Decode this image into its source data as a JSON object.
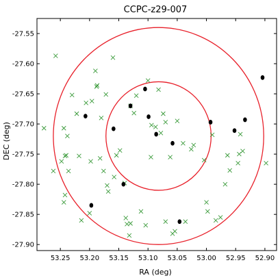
{
  "chart_data": {
    "type": "scatter",
    "title": "CCPC-z29-007",
    "xlabel": "RA (deg)",
    "ylabel": "DEC (deg)",
    "xlim": [
      53.29,
      52.88
    ],
    "ylim": [
      -27.91,
      -27.525
    ],
    "x_ticks": [
      53.25,
      53.2,
      53.15,
      53.1,
      53.05,
      53.0,
      52.95,
      52.9
    ],
    "x_tick_labels": [
      "53.25",
      "53.20",
      "53.15",
      "53.10",
      "53.05",
      "53.00",
      "52.95",
      "52.90"
    ],
    "y_ticks": [
      -27.55,
      -27.6,
      -27.65,
      -27.7,
      -27.75,
      -27.8,
      -27.85,
      -27.9
    ],
    "y_tick_labels": [
      "-27.55",
      "-27.60",
      "-27.65",
      "-27.70",
      "-27.75",
      "-27.80",
      "-27.85",
      "-27.90"
    ],
    "grid": false,
    "colors": {
      "circle": "#e8202a",
      "cross": "#3a9a3a",
      "dot": "#000000"
    },
    "circles": [
      {
        "center": [
          53.082,
          -27.72
        ],
        "radius_deg": 0.09
      },
      {
        "center": [
          53.082,
          -27.72
        ],
        "radius_deg": 0.18
      }
    ],
    "series": [
      {
        "marker": "cross",
        "points": [
          [
            53.278,
            -27.707
          ],
          [
            53.262,
            -27.778
          ],
          [
            53.258,
            -27.587
          ],
          [
            53.248,
            -27.762
          ],
          [
            53.244,
            -27.707
          ],
          [
            53.242,
            -27.753
          ],
          [
            53.24,
            -27.752
          ],
          [
            53.238,
            -27.72
          ],
          [
            53.244,
            -27.83
          ],
          [
            53.242,
            -27.818
          ],
          [
            53.236,
            -27.778
          ],
          [
            53.23,
            -27.652
          ],
          [
            53.222,
            -27.683
          ],
          [
            53.218,
            -27.753
          ],
          [
            53.214,
            -27.86
          ],
          [
            53.206,
            -27.665
          ],
          [
            53.2,
            -27.848
          ],
          [
            53.198,
            -27.762
          ],
          [
            53.196,
            -27.662
          ],
          [
            53.19,
            -27.612
          ],
          [
            53.188,
            -27.638
          ],
          [
            53.187,
            -27.636
          ],
          [
            53.182,
            -27.757
          ],
          [
            53.18,
            -27.69
          ],
          [
            53.176,
            -27.778
          ],
          [
            53.172,
            -27.651
          ],
          [
            53.17,
            -27.802
          ],
          [
            53.168,
            -27.812
          ],
          [
            53.16,
            -27.59
          ],
          [
            53.158,
            -27.788
          ],
          [
            53.154,
            -27.752
          ],
          [
            53.148,
            -27.744
          ],
          [
            53.14,
            -27.798
          ],
          [
            53.138,
            -27.856
          ],
          [
            53.136,
            -27.866
          ],
          [
            53.132,
            -27.885
          ],
          [
            53.13,
            -27.865
          ],
          [
            53.13,
            -27.67
          ],
          [
            53.124,
            -27.682
          ],
          [
            53.12,
            -27.653
          ],
          [
            53.112,
            -27.845
          ],
          [
            53.104,
            -27.868
          ],
          [
            53.1,
            -27.628
          ],
          [
            53.095,
            -27.755
          ],
          [
            53.094,
            -27.702
          ],
          [
            53.087,
            -27.705
          ],
          [
            53.082,
            -27.643
          ],
          [
            53.078,
            -27.715
          ],
          [
            53.074,
            -27.683
          ],
          [
            53.07,
            -27.697
          ],
          [
            53.07,
            -27.862
          ],
          [
            53.062,
            -27.755
          ],
          [
            53.058,
            -27.882
          ],
          [
            53.054,
            -27.878
          ],
          [
            53.05,
            -27.695
          ],
          [
            53.04,
            -27.732
          ],
          [
            53.036,
            -27.862
          ],
          [
            53.026,
            -27.742
          ],
          [
            53.022,
            -27.735
          ],
          [
            53.004,
            -27.76
          ],
          [
            53.0,
            -27.83
          ],
          [
            52.998,
            -27.845
          ],
          [
            52.99,
            -27.718
          ],
          [
            52.984,
            -27.86
          ],
          [
            52.976,
            -27.855
          ],
          [
            52.968,
            -27.8
          ],
          [
            52.964,
            -27.752
          ],
          [
            52.96,
            -27.777
          ],
          [
            52.946,
            -27.765
          ],
          [
            52.944,
            -27.75
          ],
          [
            52.942,
            -27.717
          ],
          [
            52.938,
            -27.745
          ],
          [
            52.898,
            -27.765
          ]
        ]
      },
      {
        "marker": "dot",
        "points": [
          [
            53.207,
            -27.687
          ],
          [
            53.197,
            -27.835
          ],
          [
            53.159,
            -27.708
          ],
          [
            53.142,
            -27.8
          ],
          [
            53.13,
            -27.67
          ],
          [
            53.105,
            -27.642
          ],
          [
            53.099,
            -27.688
          ],
          [
            53.086,
            -27.717
          ],
          [
            53.058,
            -27.732
          ],
          [
            53.046,
            -27.862
          ],
          [
            52.993,
            -27.697
          ],
          [
            52.952,
            -27.711
          ],
          [
            52.934,
            -27.693
          ],
          [
            52.904,
            -27.623
          ]
        ]
      }
    ]
  }
}
